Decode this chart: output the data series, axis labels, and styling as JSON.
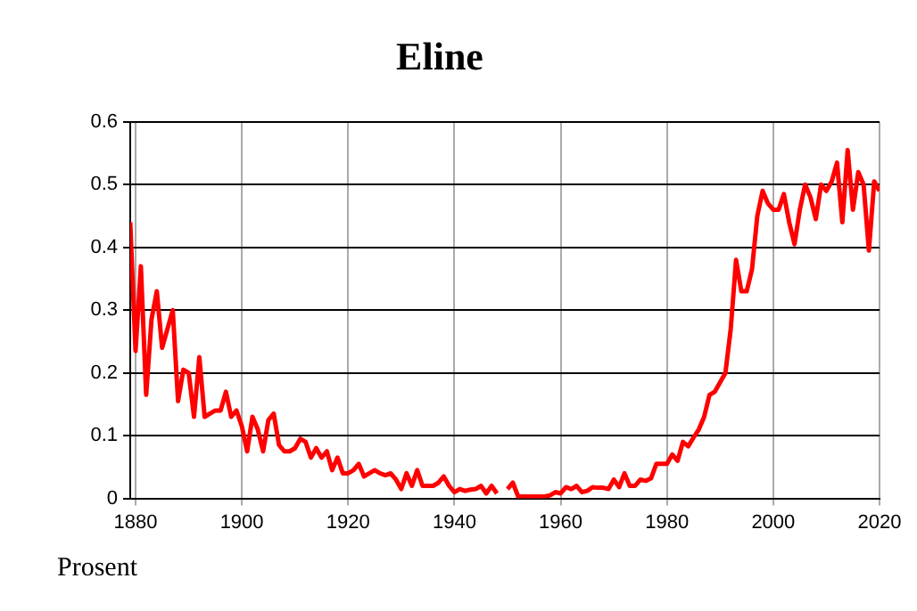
{
  "chart_data": {
    "type": "line",
    "title": "Eline",
    "ylabel": "Prosent",
    "x": [
      1879,
      1880,
      1881,
      1882,
      1883,
      1884,
      1885,
      1886,
      1887,
      1888,
      1889,
      1890,
      1891,
      1892,
      1893,
      1894,
      1895,
      1896,
      1897,
      1898,
      1899,
      1900,
      1901,
      1902,
      1903,
      1904,
      1905,
      1906,
      1907,
      1908,
      1909,
      1910,
      1911,
      1912,
      1913,
      1914,
      1915,
      1916,
      1917,
      1918,
      1919,
      1920,
      1921,
      1922,
      1923,
      1924,
      1925,
      1926,
      1927,
      1928,
      1929,
      1930,
      1931,
      1932,
      1933,
      1934,
      1935,
      1936,
      1937,
      1938,
      1939,
      1940,
      1941,
      1942,
      1943,
      1944,
      1945,
      1946,
      1947,
      1948,
      1949,
      1950,
      1951,
      1952,
      1953,
      1954,
      1955,
      1956,
      1957,
      1958,
      1959,
      1960,
      1961,
      1962,
      1963,
      1964,
      1965,
      1966,
      1967,
      1968,
      1969,
      1970,
      1971,
      1972,
      1973,
      1974,
      1975,
      1976,
      1977,
      1978,
      1979,
      1980,
      1981,
      1982,
      1983,
      1984,
      1985,
      1986,
      1987,
      1988,
      1989,
      1990,
      1991,
      1992,
      1993,
      1994,
      1995,
      1996,
      1997,
      1998,
      1999,
      2000,
      2001,
      2002,
      2003,
      2004,
      2005,
      2006,
      2007,
      2008,
      2009,
      2010,
      2011,
      2012,
      2013,
      2014,
      2015,
      2016,
      2017,
      2018,
      2019,
      2020
    ],
    "series": [
      {
        "color": "#ff0000",
        "values": [
          0.44,
          0.235,
          0.37,
          0.165,
          0.285,
          0.33,
          0.24,
          0.27,
          0.3,
          0.155,
          0.205,
          0.2,
          0.13,
          0.225,
          0.13,
          0.135,
          0.14,
          0.14,
          0.17,
          0.13,
          0.14,
          0.115,
          0.075,
          0.13,
          0.11,
          0.075,
          0.125,
          0.135,
          0.085,
          0.075,
          0.075,
          0.08,
          0.095,
          0.09,
          0.065,
          0.08,
          0.065,
          0.075,
          0.045,
          0.065,
          0.04,
          0.04,
          0.045,
          0.055,
          0.035,
          0.04,
          0.045,
          0.04,
          0.037,
          0.04,
          0.03,
          0.015,
          0.04,
          0.02,
          0.045,
          0.02,
          0.02,
          0.02,
          0.025,
          0.035,
          0.02,
          0.01,
          0.015,
          0.012,
          0.014,
          0.015,
          0.02,
          0.008,
          0.02,
          0.008,
          null,
          0.015,
          0.025,
          0.003,
          0.003,
          0.003,
          0.003,
          0.003,
          0.003,
          0.005,
          0.01,
          0.008,
          0.018,
          0.015,
          0.02,
          0.01,
          0.012,
          0.018,
          0.017,
          0.017,
          0.015,
          0.03,
          0.018,
          0.04,
          0.02,
          0.02,
          0.03,
          0.028,
          0.032,
          0.055,
          0.055,
          0.055,
          0.07,
          0.06,
          0.09,
          0.083,
          0.097,
          0.11,
          0.13,
          0.165,
          0.17,
          0.185,
          0.2,
          0.27,
          0.38,
          0.33,
          0.33,
          0.365,
          0.45,
          0.49,
          0.47,
          0.46,
          0.46,
          0.485,
          0.44,
          0.405,
          0.46,
          0.5,
          0.48,
          0.445,
          0.5,
          0.49,
          0.505,
          0.535,
          0.44,
          0.555,
          0.46,
          0.52,
          0.5,
          0.395,
          0.505,
          0.49
        ]
      }
    ],
    "xlim": [
      1879,
      2020
    ],
    "xticks": [
      1880,
      1900,
      1920,
      1940,
      1960,
      1980,
      2000,
      2020
    ],
    "ylim": [
      0,
      0.6
    ],
    "yticks": [
      0,
      0.1,
      0.2,
      0.3,
      0.4,
      0.5,
      0.6
    ],
    "grid": true,
    "legend": false,
    "marker": "none",
    "line_style": "solid"
  }
}
